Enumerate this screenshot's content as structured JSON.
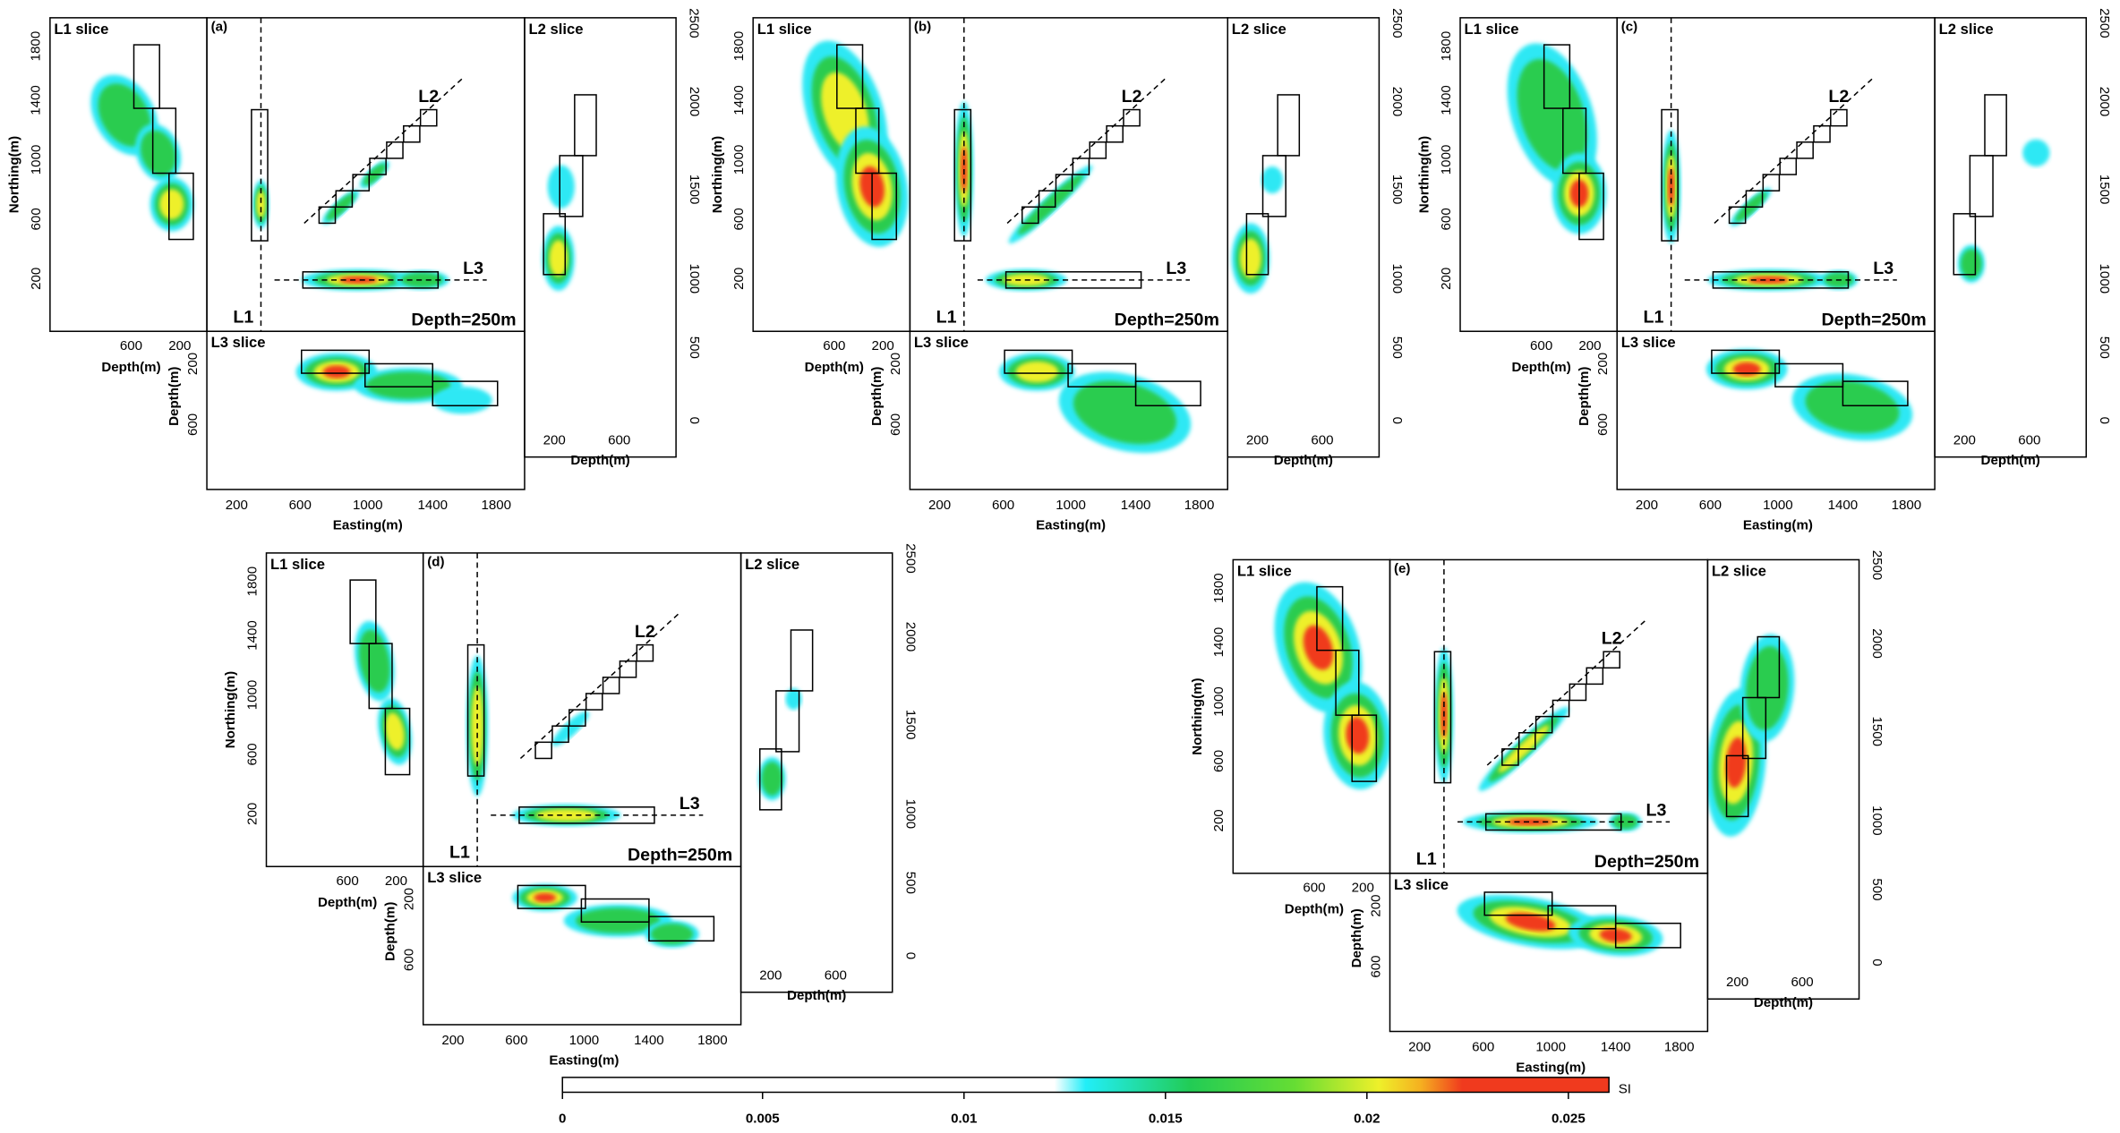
{
  "labels": {
    "l1_slice": "L1 slice",
    "l2_slice": "L2 slice",
    "l3_slice": "L3 slice",
    "northing": "Northing(m)",
    "depth": "Depth(m)",
    "easting": "Easting(m)",
    "depth_note": "Depth=250m",
    "l1": "L1",
    "l2": "L2",
    "l3": "L3"
  },
  "ticks": {
    "northing": [
      "1800",
      "1400",
      "1000",
      "600",
      "200"
    ],
    "l1_depth": [
      "600",
      "200"
    ],
    "l3_depth": [
      "200",
      "600"
    ],
    "easting": [
      "200",
      "600",
      "1000",
      "1400",
      "1800"
    ],
    "l2_northing": [
      "2500",
      "2000",
      "1500",
      "1000",
      "500",
      "0"
    ],
    "l2_depth": [
      "200",
      "600"
    ]
  },
  "panels": [
    {
      "label": "(a)"
    },
    {
      "label": "(b)"
    },
    {
      "label": "(c)"
    },
    {
      "label": "(d)"
    },
    {
      "label": "(e)"
    }
  ],
  "colorbar": {
    "ticks": [
      "0",
      "0.005",
      "0.01",
      "0.015",
      "0.02",
      "0.025"
    ],
    "unit": "SI"
  }
}
